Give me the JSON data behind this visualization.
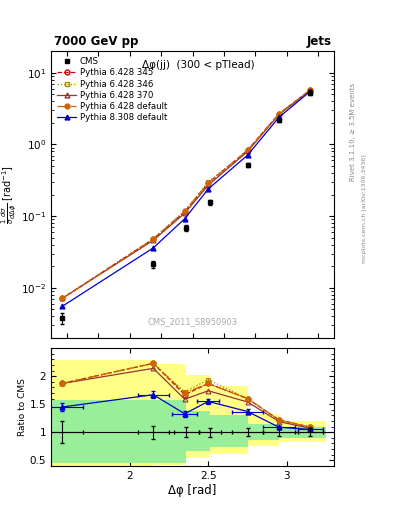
{
  "title_top": "7000 GeV pp",
  "title_right": "Jets",
  "plot_title": "Δφ(jj)  (300 < pTlead)",
  "watermark": "CMS_2011_S8950903",
  "xlabel": "Δφ [rad]",
  "ylabel_ratio": "Ratio to CMS",
  "right_label": "Rivet 3.1.10, ≥ 3.5M events",
  "right_label2": "mcplots.cern.ch [arXiv:1306.3436]",
  "cms_x": [
    1.57,
    2.15,
    2.36,
    2.51,
    2.75,
    2.95,
    3.15
  ],
  "cms_y": [
    0.0038,
    0.0215,
    0.069,
    0.155,
    0.52,
    2.2,
    5.3
  ],
  "cms_yerr": [
    0.0007,
    0.0025,
    0.006,
    0.013,
    0.038,
    0.14,
    0.38
  ],
  "py6_345_x": [
    1.57,
    2.15,
    2.35,
    2.5,
    2.75,
    2.95,
    3.15
  ],
  "py6_345_y": [
    0.0071,
    0.048,
    0.115,
    0.29,
    0.83,
    2.68,
    5.8
  ],
  "py6_346_x": [
    1.57,
    2.15,
    2.35,
    2.5,
    2.75,
    2.95,
    3.15
  ],
  "py6_346_y": [
    0.0071,
    0.048,
    0.119,
    0.3,
    0.83,
    2.68,
    5.8
  ],
  "py6_370_x": [
    1.57,
    2.15,
    2.35,
    2.5,
    2.75,
    2.95,
    3.15
  ],
  "py6_370_y": [
    0.0071,
    0.046,
    0.11,
    0.27,
    0.8,
    2.62,
    5.7
  ],
  "py6_def_x": [
    1.57,
    2.15,
    2.35,
    2.5,
    2.75,
    2.95,
    3.15
  ],
  "py6_def_y": [
    0.0071,
    0.048,
    0.117,
    0.29,
    0.83,
    2.68,
    5.8
  ],
  "py8_def_x": [
    1.57,
    2.15,
    2.35,
    2.5,
    2.75,
    2.95,
    3.15
  ],
  "py8_def_y": [
    0.0055,
    0.036,
    0.092,
    0.24,
    0.71,
    2.4,
    5.55
  ],
  "ratio_py6_345_x": [
    1.57,
    2.15,
    2.35,
    2.5,
    2.75,
    2.95,
    3.15
  ],
  "ratio_py6_345_y": [
    1.87,
    2.23,
    1.67,
    1.87,
    1.6,
    1.22,
    1.09
  ],
  "ratio_py6_346_x": [
    1.57,
    2.15,
    2.35,
    2.5,
    2.75,
    2.95,
    3.15
  ],
  "ratio_py6_346_y": [
    1.87,
    2.23,
    1.72,
    1.94,
    1.6,
    1.22,
    1.09
  ],
  "ratio_py6_370_x": [
    1.57,
    2.15,
    2.35,
    2.5,
    2.75,
    2.95,
    3.15
  ],
  "ratio_py6_370_y": [
    1.87,
    2.14,
    1.59,
    1.74,
    1.54,
    1.19,
    1.07
  ],
  "ratio_py6_def_x": [
    1.57,
    2.15,
    2.35,
    2.5,
    2.75,
    2.95,
    3.15
  ],
  "ratio_py6_def_y": [
    1.87,
    2.23,
    1.7,
    1.87,
    1.6,
    1.22,
    1.09
  ],
  "ratio_py8_def_x": [
    1.57,
    2.15,
    2.35,
    2.5,
    2.75,
    2.95,
    3.15
  ],
  "ratio_py8_def_y": [
    1.45,
    1.67,
    1.33,
    1.55,
    1.37,
    1.09,
    1.05
  ],
  "ratio_py8_def_yerr": [
    0.07,
    0.06,
    0.05,
    0.05,
    0.04,
    0.03,
    0.03
  ],
  "ratio_cms_x": [
    1.57,
    2.15,
    2.36,
    2.51,
    2.75,
    2.95,
    3.15
  ],
  "ratio_cms_xerr": [
    0.13,
    0.1,
    0.08,
    0.07,
    0.1,
    0.1,
    0.08
  ],
  "ratio_cms_yerr": [
    0.2,
    0.12,
    0.09,
    0.08,
    0.07,
    0.065,
    0.072
  ],
  "green_band_edges": [
    1.5,
    1.83,
    2.15,
    2.36,
    2.51,
    2.75,
    2.95,
    3.25
  ],
  "green_band_hi": [
    1.58,
    1.58,
    1.58,
    1.38,
    1.3,
    1.14,
    1.1
  ],
  "green_band_lo": [
    0.45,
    0.45,
    0.45,
    0.67,
    0.73,
    0.87,
    0.9
  ],
  "yellow_band_edges": [
    1.5,
    1.83,
    2.15,
    2.36,
    2.51,
    2.75,
    2.95,
    3.25
  ],
  "yellow_band_hi": [
    2.28,
    2.28,
    2.22,
    2.02,
    1.83,
    1.33,
    1.2
  ],
  "yellow_band_lo": [
    0.4,
    0.4,
    0.42,
    0.55,
    0.62,
    0.75,
    0.83
  ],
  "color_py6_345": "#cc0000",
  "color_py6_346": "#aa8800",
  "color_py6_370": "#993333",
  "color_py6_def": "#cc6600",
  "color_py8_def": "#0000cc",
  "color_cms": "#000000",
  "color_green": "#99ee99",
  "color_yellow": "#ffff88",
  "xlim": [
    1.5,
    3.3
  ],
  "ylim_main": [
    0.002,
    20
  ],
  "ylim_ratio": [
    0.4,
    2.5
  ],
  "yticks_ratio": [
    0.5,
    1.0,
    1.5,
    2.0
  ]
}
